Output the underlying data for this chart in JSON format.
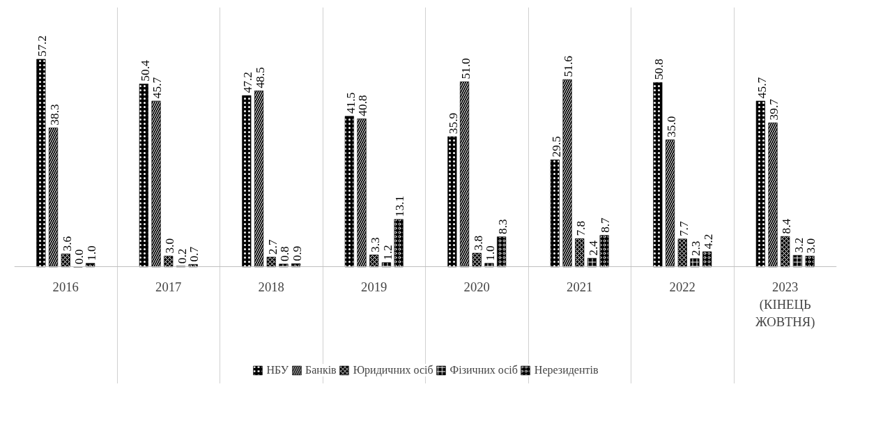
{
  "chart_data": {
    "type": "bar",
    "categories": [
      "2016",
      "2017",
      "2018",
      "2019",
      "2020",
      "2021",
      "2022",
      "2023\n(КІНЕЦЬ\nЖОВТНЯ)"
    ],
    "series": [
      {
        "name": "НБУ",
        "color": "#000000",
        "values": [
          57.2,
          50.4,
          47.2,
          41.5,
          35.9,
          29.5,
          50.8,
          45.7
        ],
        "value_labels": [
          "57.2",
          "50.4",
          "47.2",
          "41.5",
          "35.9",
          "29.5",
          "50.8",
          "45.7"
        ]
      },
      {
        "name": "Банків",
        "color": "#000000",
        "values": [
          38.3,
          45.7,
          48.5,
          40.8,
          51.0,
          51.6,
          35.0,
          39.7
        ],
        "value_labels": [
          "38.3",
          "45.7",
          "48.5",
          "40.8",
          "51.0",
          "51.6",
          "35.0",
          "39.7"
        ]
      },
      {
        "name": "Юридичних осіб",
        "color": "#000000",
        "values": [
          3.6,
          3.0,
          2.7,
          3.3,
          3.8,
          7.8,
          7.7,
          8.4
        ],
        "value_labels": [
          "3.6",
          "3.0",
          "2.7",
          "3.3",
          "3.8",
          "7.8",
          "7.7",
          "8.4"
        ]
      },
      {
        "name": "Фізичних осіб",
        "color": "#000000",
        "values": [
          0.0,
          0.2,
          0.8,
          1.2,
          1.0,
          2.4,
          2.3,
          3.2
        ],
        "value_labels": [
          "0.0",
          "0.2",
          "0.8",
          "1.2",
          "1.0",
          "2.4",
          "2.3",
          "3.2"
        ]
      },
      {
        "name": "Нерезидентів",
        "color": "#000000",
        "values": [
          1.0,
          0.7,
          0.9,
          13.1,
          8.3,
          8.7,
          4.2,
          3.0
        ],
        "value_labels": [
          "1.0",
          "0.7",
          "0.9",
          "13.1",
          "8.3",
          "8.7",
          "4.2",
          "3.0"
        ]
      }
    ],
    "grid": "x",
    "legend": "bottom"
  }
}
